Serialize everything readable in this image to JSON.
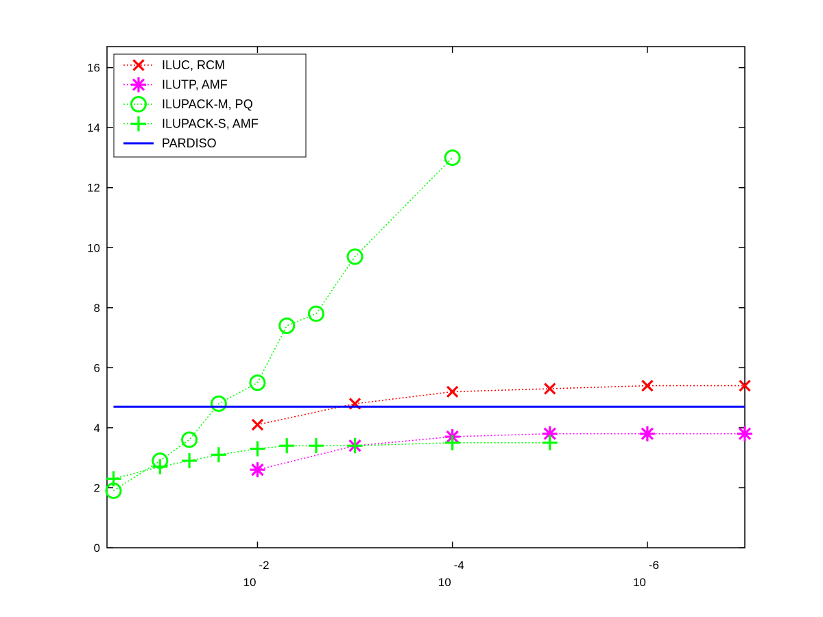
{
  "chart_data": {
    "type": "line",
    "title": "",
    "xlabel": "",
    "ylabel": "",
    "x_scale": "log",
    "x_direction": "decreasing",
    "xlim": [
      0.35,
      1e-07
    ],
    "ylim": [
      0,
      16.7
    ],
    "grid": false,
    "legend_position": "top-left",
    "x_ticks": [
      {
        "value": 0.01,
        "base": "10",
        "exponent": "-2"
      },
      {
        "value": 0.0001,
        "base": "10",
        "exponent": "-4"
      },
      {
        "value": 1e-06,
        "base": "10",
        "exponent": "-6"
      }
    ],
    "y_ticks": [
      {
        "value": 0,
        "label": "0"
      },
      {
        "value": 2,
        "label": "2"
      },
      {
        "value": 4,
        "label": "4"
      },
      {
        "value": 6,
        "label": "6"
      },
      {
        "value": 8,
        "label": "8"
      },
      {
        "value": 10,
        "label": "10"
      },
      {
        "value": 12,
        "label": "12"
      },
      {
        "value": 14,
        "label": "14"
      },
      {
        "value": 16,
        "label": "16"
      }
    ],
    "series": [
      {
        "name": "ILUC, RCM",
        "color": "#ff0000",
        "marker": "x",
        "line_style": "dotted",
        "x": [
          0.01,
          0.001,
          0.0001,
          1e-05,
          1e-06,
          1e-07
        ],
        "y": [
          4.1,
          4.8,
          5.2,
          5.3,
          5.4,
          5.4
        ]
      },
      {
        "name": "ILUTP, AMF",
        "color": "#ff00ff",
        "marker": "asterisk",
        "line_style": "dotted",
        "x": [
          0.01,
          0.001,
          0.0001,
          1e-05,
          1e-06,
          1e-07
        ],
        "y": [
          2.6,
          3.4,
          3.7,
          3.8,
          3.8,
          3.8
        ]
      },
      {
        "name": "ILUPACK-M, PQ",
        "color": "#00ff00",
        "marker": "circle",
        "line_style": "dotted",
        "x": [
          0.3,
          0.1,
          0.05,
          0.025,
          0.01,
          0.005,
          0.0025,
          0.001,
          0.0001
        ],
        "y": [
          1.9,
          2.9,
          3.6,
          4.8,
          5.5,
          7.4,
          7.8,
          9.7,
          13.0
        ]
      },
      {
        "name": "ILUPACK-S, AMF",
        "color": "#00ff00",
        "marker": "plus",
        "line_style": "dotted",
        "x": [
          0.3,
          0.1,
          0.05,
          0.025,
          0.01,
          0.005,
          0.0025,
          0.001,
          0.0001,
          1e-05
        ],
        "y": [
          2.3,
          2.7,
          2.9,
          3.1,
          3.3,
          3.4,
          3.4,
          3.4,
          3.5,
          3.5
        ]
      },
      {
        "name": "PARDISO",
        "color": "#0000ff",
        "marker": "none",
        "line_style": "solid",
        "x": [
          0.3,
          1e-07
        ],
        "y": [
          4.7,
          4.7
        ]
      }
    ]
  }
}
